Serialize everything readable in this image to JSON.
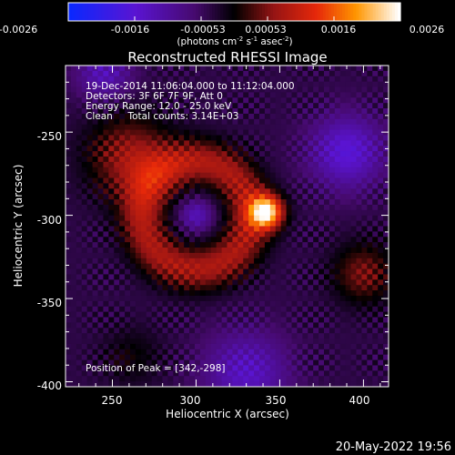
{
  "chart_data": {
    "type": "heatmap",
    "title": "Reconstructed RHESSI Image",
    "xlabel": "Heliocentric X (arcsec)",
    "ylabel": "Heliocentric Y (arcsec)",
    "xlim": [
      222,
      415
    ],
    "ylim": [
      -403,
      -210
    ],
    "xticks": [
      250,
      300,
      350,
      400
    ],
    "yticks": [
      -250,
      -300,
      -350,
      -400
    ],
    "colorbar": {
      "ticks": [
        "-0.0026",
        "-0.0016",
        "-0.00053",
        "0.00053",
        "0.0016",
        "0.0026"
      ],
      "range": [
        -0.0026,
        0.0026
      ],
      "label_main": "(photons cm",
      "label_exp1": "-2",
      "label_mid": " s",
      "label_exp2": "-1",
      "label_post": " asec",
      "label_exp3": "-2",
      "label_end": ")"
    },
    "annotations": {
      "time": "19-Dec-2014 11:06:04.000 to 11:12:04.000",
      "detectors": "Detectors: 3F 6F 7F 9F, Att 0",
      "energy": "Energy Range: 12.0 - 25.0 keV",
      "clean": "Clean     Total counts: 3.14E+03",
      "peak": "Position of Peak = [342,-298]"
    },
    "peak": {
      "x": 342,
      "y": -298
    },
    "features": [
      {
        "kind": "ring",
        "x": 300,
        "y": -300,
        "radius": 32,
        "value": 0.0012
      },
      {
        "kind": "peak",
        "x": 342,
        "y": -298,
        "radius": 10,
        "value": 0.0026
      },
      {
        "kind": "blob",
        "x": 260,
        "y": -265,
        "radius": 25,
        "value": 0.0011
      },
      {
        "kind": "blob",
        "x": 400,
        "y": -335,
        "radius": 18,
        "value": 0.0009
      },
      {
        "kind": "blob",
        "x": 262,
        "y": -385,
        "radius": 18,
        "value": 0.0004
      },
      {
        "kind": "dip",
        "x": 390,
        "y": -262,
        "radius": 22,
        "value": -0.0012
      },
      {
        "kind": "dip",
        "x": 245,
        "y": -215,
        "radius": 16,
        "value": -0.0009
      },
      {
        "kind": "dip",
        "x": 330,
        "y": -395,
        "radius": 25,
        "value": -0.001
      }
    ],
    "grid": false
  },
  "footer": {
    "date": "20-May-2022 19:56"
  }
}
